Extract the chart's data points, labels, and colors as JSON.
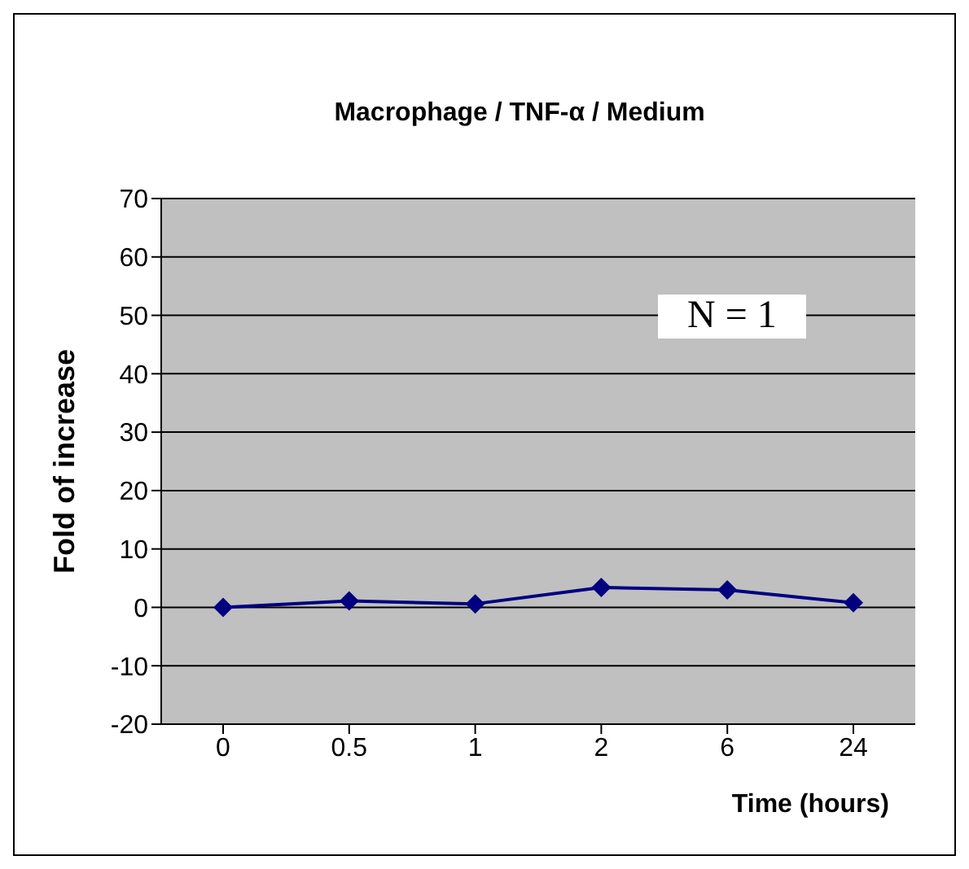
{
  "chart_data": {
    "type": "line",
    "title": "Macrophage / TNF-α / Medium",
    "xlabel": "Time (hours)",
    "ylabel": "Fold of increase",
    "annotations": [
      "N = 1"
    ],
    "categories": [
      "0",
      "0.5",
      "1",
      "2",
      "6",
      "24"
    ],
    "series": [
      {
        "color": "#000080",
        "values": [
          0,
          1.1,
          0.6,
          3.4,
          3.0,
          0.8
        ]
      }
    ],
    "ylim": [
      -20,
      70
    ],
    "yticks": [
      -20,
      -10,
      0,
      10,
      20,
      30,
      40,
      50,
      60,
      70
    ],
    "grid": "y",
    "marker": "diamond",
    "line_style": "solid"
  }
}
